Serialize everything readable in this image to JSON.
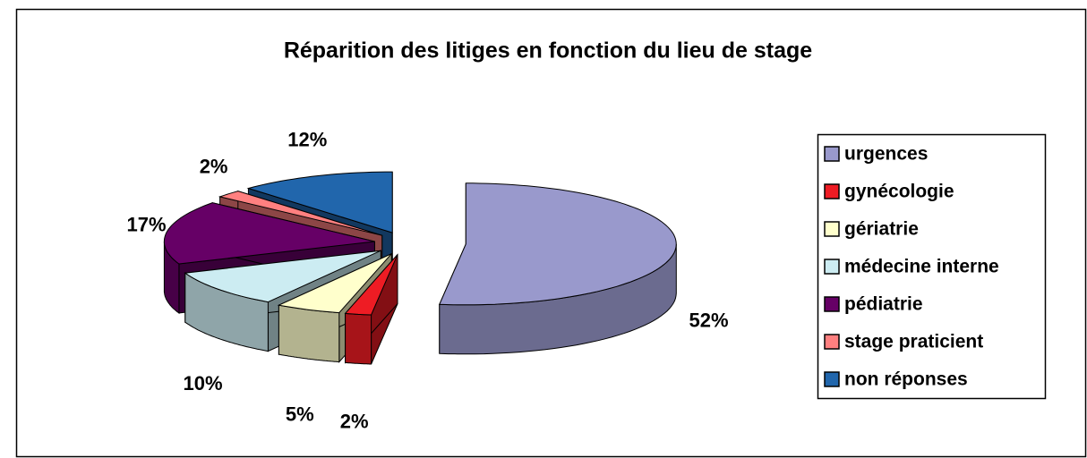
{
  "chart_data": {
    "type": "pie3d",
    "title": "Réparition des litiges en fonction du lieu de stage",
    "categories": [
      "urgences",
      "gynécologie",
      "gériatrie",
      "médecine interne",
      "pédiatrie",
      "stage praticient",
      "non réponses"
    ],
    "values": [
      52,
      2,
      5,
      10,
      17,
      2,
      12
    ],
    "value_labels": [
      "52%",
      "2%",
      "5%",
      "10%",
      "17%",
      "2%",
      "12%"
    ],
    "colors": [
      "#9999cc",
      "#ee1c24",
      "#ffffcc",
      "#ccecf2",
      "#660066",
      "#ff8080",
      "#2166ac"
    ],
    "legend": "right"
  }
}
